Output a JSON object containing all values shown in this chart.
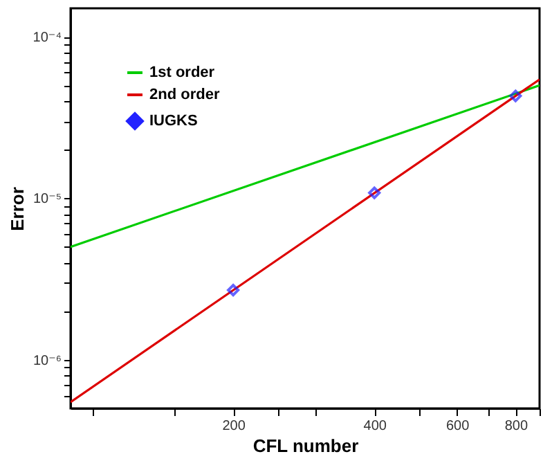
{
  "chart_data": {
    "type": "line",
    "xlabel": "CFL number",
    "ylabel": "Error",
    "log": "xy",
    "grid": false,
    "legend": "top left",
    "xlim": [
      90,
      900
    ],
    "ylim": [
      5e-07,
      0.00015
    ],
    "xticks": [
      {
        "value": 100,
        "label": null
      },
      {
        "value": 150,
        "label": null
      },
      200,
      {
        "value": 250,
        "label": null
      },
      {
        "value": 300,
        "label": null
      },
      400,
      {
        "value": 500,
        "label": null
      },
      600,
      {
        "value": 700,
        "label": null
      },
      800,
      {
        "value": 900,
        "label": null
      }
    ],
    "yticks": [
      {
        "value": 6e-07,
        "label": null
      },
      {
        "value": 7e-07,
        "label": null
      },
      {
        "value": 8e-07,
        "label": null
      },
      {
        "value": 9e-07,
        "label": null
      },
      {
        "value": 1e-06,
        "label": "10⁻⁶"
      },
      {
        "value": 2e-06,
        "label": null
      },
      {
        "value": 3e-06,
        "label": null
      },
      {
        "value": 4e-06,
        "label": null
      },
      {
        "value": 5e-06,
        "label": null
      },
      {
        "value": 6e-06,
        "label": null
      },
      {
        "value": 7e-06,
        "label": null
      },
      {
        "value": 8e-06,
        "label": null
      },
      {
        "value": 9e-06,
        "label": null
      },
      {
        "value": 1e-05,
        "label": "10⁻⁵"
      },
      {
        "value": 2e-05,
        "label": null
      },
      {
        "value": 3e-05,
        "label": null
      },
      {
        "value": 4e-05,
        "label": null
      },
      {
        "value": 5e-05,
        "label": null
      },
      {
        "value": 6e-05,
        "label": null
      },
      {
        "value": 7e-05,
        "label": null
      },
      {
        "value": 8e-05,
        "label": null
      },
      {
        "value": 9e-05,
        "label": null
      },
      {
        "value": 0.0001,
        "label": "10⁻⁴"
      }
    ],
    "series": [
      {
        "name": "1st order",
        "type": "line",
        "color": "#00cc00",
        "x": [
          90,
          900
        ],
        "values": [
          5e-06,
          5e-05
        ]
      },
      {
        "name": "2nd order",
        "type": "line",
        "color": "#dd0000",
        "x": [
          90,
          900
        ],
        "values": [
          5.47e-07,
          5.44e-05
        ]
      },
      {
        "name": "IUGKS",
        "type": "scatter",
        "marker": "diamond",
        "color": "#2222ff",
        "x": [
          200,
          400,
          800
        ],
        "values": [
          2.7e-06,
          1.08e-05,
          4.3e-05
        ]
      }
    ]
  }
}
